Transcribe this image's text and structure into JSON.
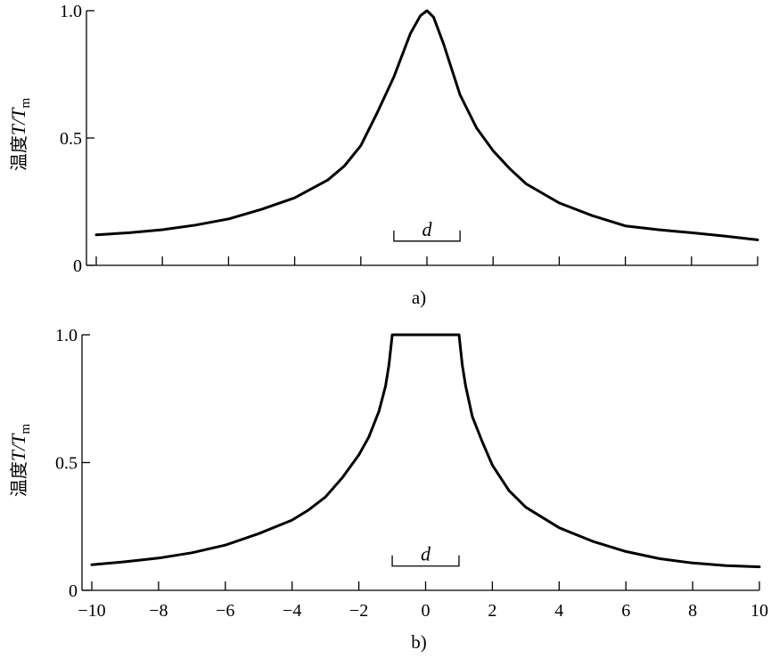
{
  "chart_data": [
    {
      "panel": "a)",
      "type": "line",
      "ylabel": {
        "prefix": "温度",
        "var1": "T",
        "slash": "/",
        "var2": "T",
        "sub": "m"
      },
      "xlim": [
        -10,
        10
      ],
      "ylim": [
        0,
        1.0
      ],
      "yticks": [
        0,
        0.5,
        1.0
      ],
      "ytick_labels": [
        "0",
        "0.5",
        "1.0"
      ],
      "xticks": [
        -10,
        -8,
        -6,
        -4,
        -2,
        0,
        2,
        4,
        6,
        8,
        10
      ],
      "xtick_labels": [],
      "grid": false,
      "annotation": {
        "text": "d",
        "x_start": -1,
        "x_end": 1,
        "y": 0.1
      },
      "series": [
        {
          "x": [
            -10,
            -9,
            -8,
            -7,
            -6,
            -5,
            -4,
            -3,
            -2.5,
            -2,
            -1.5,
            -1,
            -0.5,
            -0.2,
            0,
            0.2,
            0.5,
            1,
            1.5,
            2,
            2.5,
            3,
            4,
            5,
            6,
            7,
            8,
            9,
            10
          ],
          "y": [
            0.12,
            0.128,
            0.14,
            0.158,
            0.182,
            0.22,
            0.265,
            0.335,
            0.39,
            0.47,
            0.6,
            0.74,
            0.91,
            0.98,
            1.0,
            0.975,
            0.87,
            0.67,
            0.54,
            0.45,
            0.38,
            0.32,
            0.245,
            0.195,
            0.155,
            0.14,
            0.128,
            0.115,
            0.1
          ]
        }
      ]
    },
    {
      "panel": "b)",
      "type": "line",
      "ylabel": {
        "prefix": "温度",
        "var1": "T",
        "slash": "/",
        "var2": "T",
        "sub": "m"
      },
      "xlim": [
        -10,
        10
      ],
      "ylim": [
        0,
        1.0
      ],
      "yticks": [
        0,
        0.5,
        1.0
      ],
      "ytick_labels": [
        "0",
        "0.5",
        "1.0"
      ],
      "xticks": [
        -10,
        -8,
        -6,
        -4,
        -2,
        0,
        2,
        4,
        6,
        8,
        10
      ],
      "xtick_labels": [
        "-10",
        "-8",
        "-6",
        "-4",
        "-2",
        "0",
        "2",
        "4",
        "6",
        "8",
        "10"
      ],
      "grid": false,
      "annotation": {
        "text": "d",
        "x_start": -1,
        "x_end": 1,
        "y": 0.1
      },
      "series": [
        {
          "x": [
            -10,
            -9,
            -8,
            -7,
            -6,
            -5,
            -4,
            -3.5,
            -3,
            -2.5,
            -2,
            -1.7,
            -1.4,
            -1.2,
            -1.1,
            -1,
            1,
            1.1,
            1.2,
            1.4,
            1.7,
            2,
            2.5,
            3,
            4,
            5,
            6,
            7,
            8,
            9,
            10
          ],
          "y": [
            0.1,
            0.112,
            0.126,
            0.147,
            0.177,
            0.222,
            0.275,
            0.315,
            0.365,
            0.44,
            0.53,
            0.6,
            0.7,
            0.8,
            0.88,
            1.0,
            1.0,
            0.88,
            0.8,
            0.68,
            0.58,
            0.49,
            0.39,
            0.325,
            0.245,
            0.192,
            0.152,
            0.124,
            0.107,
            0.097,
            0.092
          ]
        }
      ]
    }
  ]
}
